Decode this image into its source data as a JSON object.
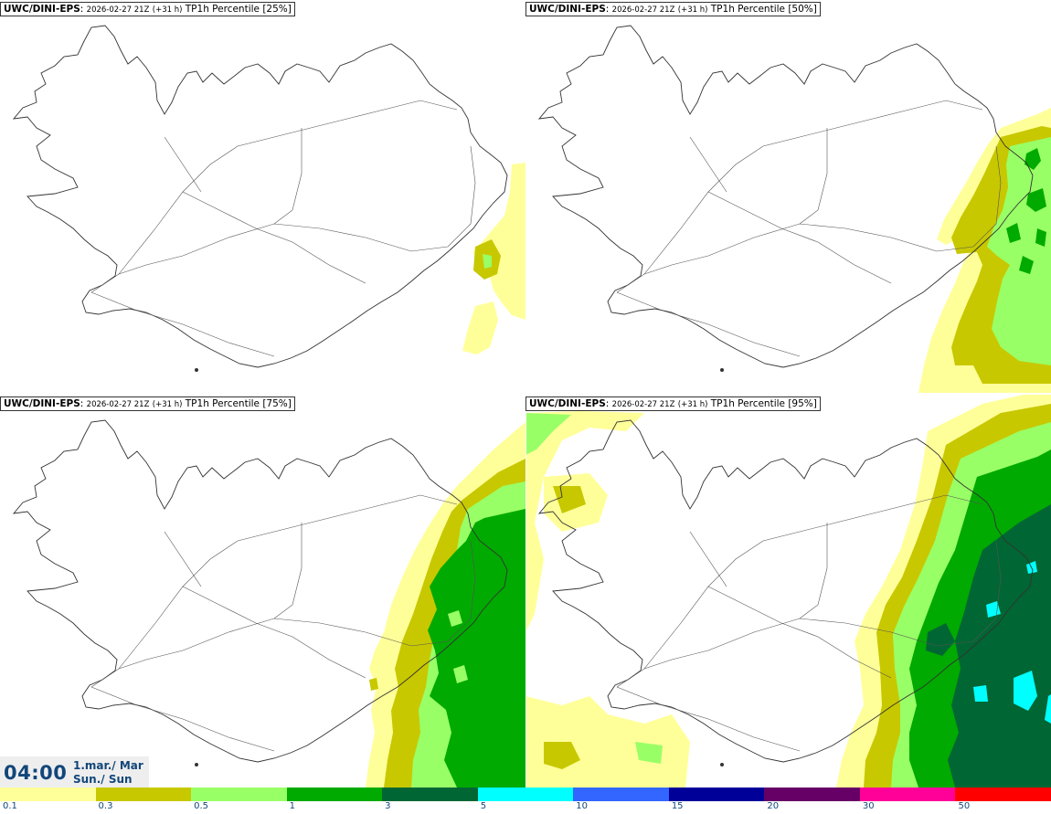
{
  "panels": [
    {
      "model": "UWC/DINI-EPS",
      "run": "2026-02-27 21Z",
      "lead": "(+31 h)",
      "product": "TP1h Percentile [25%]"
    },
    {
      "model": "UWC/DINI-EPS",
      "run": "2026-02-27 21Z",
      "lead": "(+31 h)",
      "product": "TP1h Percentile [50%]"
    },
    {
      "model": "UWC/DINI-EPS",
      "run": "2026-02-27 21Z",
      "lead": "(+31 h)",
      "product": "TP1h Percentile [75%]"
    },
    {
      "model": "UWC/DINI-EPS",
      "run": "2026-02-27 21Z",
      "lead": "(+31 h)",
      "product": "TP1h Percentile [95%]"
    }
  ],
  "valid_time": {
    "time": "04:00",
    "date_line1": "1.mar./ Mar",
    "date_line2": "Sun./ Sun"
  },
  "legend": {
    "colors": [
      "#ffff99",
      "#c8c800",
      "#99ff66",
      "#00aa00",
      "#006633",
      "#00ffff",
      "#3366ff",
      "#000099",
      "#660066",
      "#ff0099",
      "#ff0000"
    ],
    "labels": [
      "0.1",
      "0.3",
      "0.5",
      "1",
      "3",
      "5",
      "10",
      "15",
      "20",
      "30",
      "50"
    ]
  },
  "colors": {
    "coast": "#333333",
    "title_text": "#12467a",
    "time_box_bg": "#eeeeee"
  }
}
